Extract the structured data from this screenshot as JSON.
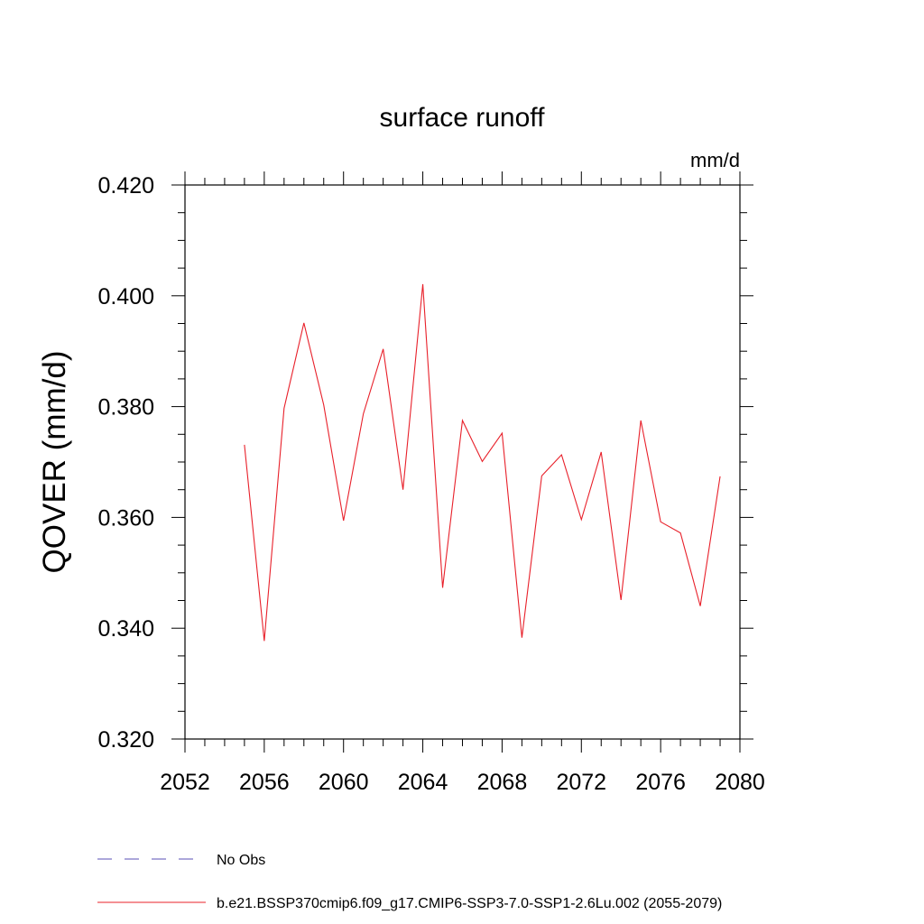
{
  "chart_data": {
    "type": "line",
    "title": "surface runoff",
    "units_label": "mm/d",
    "ylabel": "QOVER  (mm/d)",
    "xlabel": "",
    "xlim": [
      2052,
      2080
    ],
    "ylim": [
      0.32,
      0.42
    ],
    "xticks": [
      2052,
      2056,
      2060,
      2064,
      2068,
      2072,
      2076,
      2080
    ],
    "xtick_labels": [
      "2052",
      "2056",
      "2060",
      "2064",
      "2068",
      "2072",
      "2076",
      "2080"
    ],
    "xminor_step": 1,
    "yticks": [
      0.32,
      0.34,
      0.36,
      0.38,
      0.4,
      0.42
    ],
    "ytick_labels": [
      "0.320",
      "0.340",
      "0.360",
      "0.380",
      "0.400",
      "0.420"
    ],
    "yminor_step": 0.005,
    "grid": false,
    "legend_position": "bottom",
    "series": [
      {
        "name": "b.e21.BSSP370cmip6.f09_g17.CMIP6-SSP3-7.0-SSP1-2.6Lu.002 (2055-2079)",
        "color": "#e8202a",
        "style": "solid",
        "x": [
          2055,
          2056,
          2057,
          2058,
          2059,
          2060,
          2061,
          2062,
          2063,
          2064,
          2065,
          2066,
          2067,
          2068,
          2069,
          2070,
          2071,
          2072,
          2073,
          2074,
          2075,
          2076,
          2077,
          2078,
          2079
        ],
        "y": [
          0.3731,
          0.3377,
          0.3797,
          0.3951,
          0.3803,
          0.3594,
          0.3787,
          0.3904,
          0.365,
          0.4021,
          0.3473,
          0.3775,
          0.3701,
          0.3752,
          0.3383,
          0.3675,
          0.3713,
          0.3596,
          0.3718,
          0.3451,
          0.3775,
          0.3592,
          0.3572,
          0.344,
          0.3674
        ]
      }
    ],
    "legend": [
      {
        "label": "No Obs",
        "color": "#5a4fb5",
        "style": "dashed"
      },
      {
        "label": "b.e21.BSSP370cmip6.f09_g17.CMIP6-SSP3-7.0-SSP1-2.6Lu.002 (2055-2079)",
        "color": "#e8202a",
        "style": "solid"
      }
    ]
  }
}
